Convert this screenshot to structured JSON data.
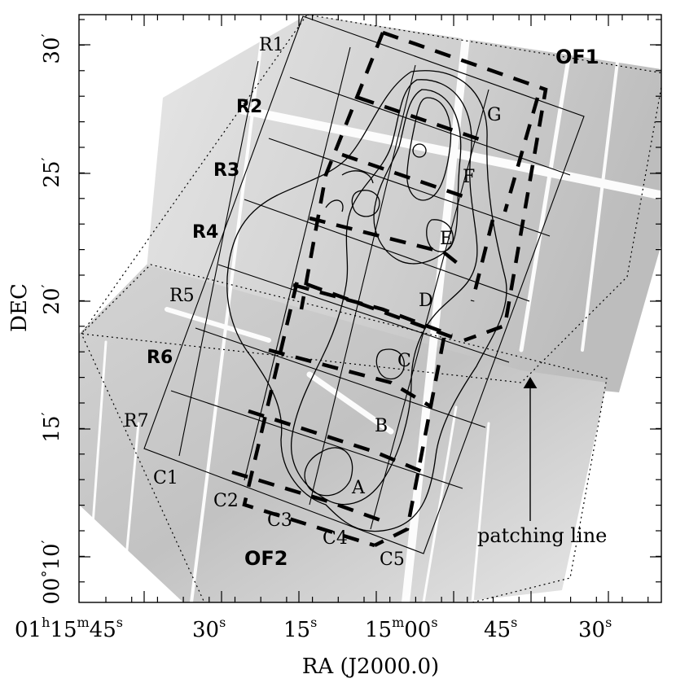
{
  "axes": {
    "xlabel": "RA (J2000.0)",
    "ylabel": "DEC",
    "x_ticks": [
      {
        "h": "01",
        "m": "15",
        "s": "45"
      },
      {
        "h": "",
        "m": "",
        "s": "30"
      },
      {
        "h": "",
        "m": "",
        "s": "15"
      },
      {
        "h": "",
        "m": "15",
        "s": "00"
      },
      {
        "h": "",
        "m": "",
        "s": "45"
      },
      {
        "h": "",
        "m": "",
        "s": "30"
      }
    ],
    "y_ticks": [
      {
        "value": "10",
        "deg_prefix": "00"
      },
      {
        "value": "15"
      },
      {
        "value": "20"
      },
      {
        "value": "25"
      },
      {
        "value": "30"
      }
    ],
    "units": {
      "h": "h",
      "m": "m",
      "s": "s",
      "arcmin": "′",
      "deg": "°"
    }
  },
  "fields": {
    "of1": "OF1",
    "of2": "OF2"
  },
  "rows": [
    "R1",
    "R2",
    "R3",
    "R4",
    "R5",
    "R6",
    "R7"
  ],
  "columns": [
    "C1",
    "C2",
    "C3",
    "C4",
    "C5"
  ],
  "regions": [
    "A",
    "B",
    "C",
    "D",
    "E",
    "F",
    "G"
  ],
  "annotation": {
    "patching_line": "patching line"
  },
  "colors": {
    "frame": "#000000",
    "grid": "#000000",
    "image_light": "#f2f2f2",
    "image_dark": "#b8b8b8",
    "stripe": "#ffffff"
  }
}
